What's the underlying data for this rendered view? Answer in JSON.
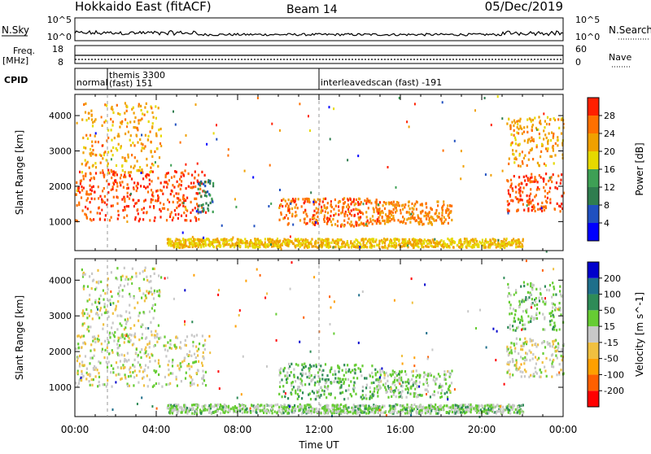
{
  "header": {
    "title": "Hokkaido East (fitACF)",
    "beam": "Beam 14",
    "date": "05/Dec/2019"
  },
  "top_panels": {
    "nsky_label": "N.Sky",
    "nsky_ticks": [
      "10^5",
      "10^0"
    ],
    "nsearch_label": "N.Search",
    "nsearch_ticks": [
      "10^5",
      "10^0"
    ],
    "freq_label": "Freq.",
    "freq_unit": "[MHz]",
    "freq_ticks": [
      "18",
      "8"
    ],
    "nave_label": "Nave",
    "nave_ticks": [
      "60",
      "0"
    ],
    "cpid_label": "CPID"
  },
  "cpid_segments": [
    {
      "name": "normal",
      "start_h": 0.0
    },
    {
      "name": "themis 3300\n(fast) 151",
      "start_h": 1.6
    },
    {
      "name": "interleavedscan (fast) -191",
      "start_h": 12.0
    }
  ],
  "x_axis": {
    "label": "Time UT",
    "ticks": [
      "00:00",
      "04:00",
      "08:00",
      "12:00",
      "16:00",
      "20:00",
      "00:00"
    ],
    "range_h": [
      0,
      24
    ]
  },
  "chart_data": [
    {
      "type": "heatmap",
      "name": "Power",
      "ylabel": "Slant Range [km]",
      "ylim": [
        180,
        4600
      ],
      "yticks": [
        "4000",
        "3000",
        "2000",
        "1000"
      ],
      "colorbar_label": "Power [dB]",
      "colorbar_ticks": [
        "28",
        "24",
        "20",
        "16",
        "12",
        "8",
        "4"
      ],
      "colorbar_range": [
        0,
        32
      ],
      "colors": [
        "#0000ff",
        "#2050c0",
        "#2f7d4f",
        "#3ea055",
        "#e6d900",
        "#f0a000",
        "#ff7000",
        "#ff2000"
      ],
      "regions": [
        {
          "t": [
            0,
            6.4
          ],
          "r": [
            1050,
            2500
          ],
          "v": 28
        },
        {
          "t": [
            0.3,
            4.2
          ],
          "r": [
            2400,
            4400
          ],
          "v": 22
        },
        {
          "t": [
            6.0,
            6.8
          ],
          "r": [
            1300,
            2200
          ],
          "v": 10
        },
        {
          "t": [
            10.0,
            15.0
          ],
          "r": [
            900,
            1700
          ],
          "v": 26
        },
        {
          "t": [
            14.8,
            18.5
          ],
          "r": [
            950,
            1600
          ],
          "v": 24
        },
        {
          "t": [
            4.5,
            22.0
          ],
          "r": [
            300,
            550
          ],
          "v": 20
        },
        {
          "t": [
            21.2,
            24.0
          ],
          "r": [
            1300,
            2400
          ],
          "v": 28
        },
        {
          "t": [
            21.2,
            24.0
          ],
          "r": [
            2600,
            4000
          ],
          "v": 22
        }
      ]
    },
    {
      "type": "heatmap",
      "name": "Velocity",
      "ylabel": "Slant Range [km]",
      "ylim": [
        180,
        4600
      ],
      "yticks": [
        "4000",
        "3000",
        "2000",
        "1000"
      ],
      "colorbar_label": "Velocity [m s^-1]",
      "colorbar_ticks": [
        "200",
        "100",
        "50",
        "15",
        "-15",
        "-50",
        "-100",
        "-200"
      ],
      "colorbar_range": [
        -250,
        250
      ],
      "colors": [
        "#ff0000",
        "#ff6000",
        "#ffa000",
        "#f0c040",
        "#c8c8c8",
        "#66cc33",
        "#2e8b57",
        "#1f6f8b",
        "#0000cc"
      ],
      "regions": [
        {
          "t": [
            0,
            6.4
          ],
          "r": [
            1050,
            2500
          ],
          "v": 0
        },
        {
          "t": [
            0.3,
            4.2
          ],
          "r": [
            2400,
            4400
          ],
          "v": 0
        },
        {
          "t": [
            10.0,
            15.0
          ],
          "r": [
            700,
            1700
          ],
          "v": 60
        },
        {
          "t": [
            14.8,
            18.5
          ],
          "r": [
            750,
            1500
          ],
          "v": 30
        },
        {
          "t": [
            4.5,
            22.0
          ],
          "r": [
            300,
            550
          ],
          "v": 40
        },
        {
          "t": [
            21.2,
            24.0
          ],
          "r": [
            1300,
            2400
          ],
          "v": 0
        },
        {
          "t": [
            21.2,
            24.0
          ],
          "r": [
            2600,
            4000
          ],
          "v": 40
        }
      ]
    }
  ]
}
